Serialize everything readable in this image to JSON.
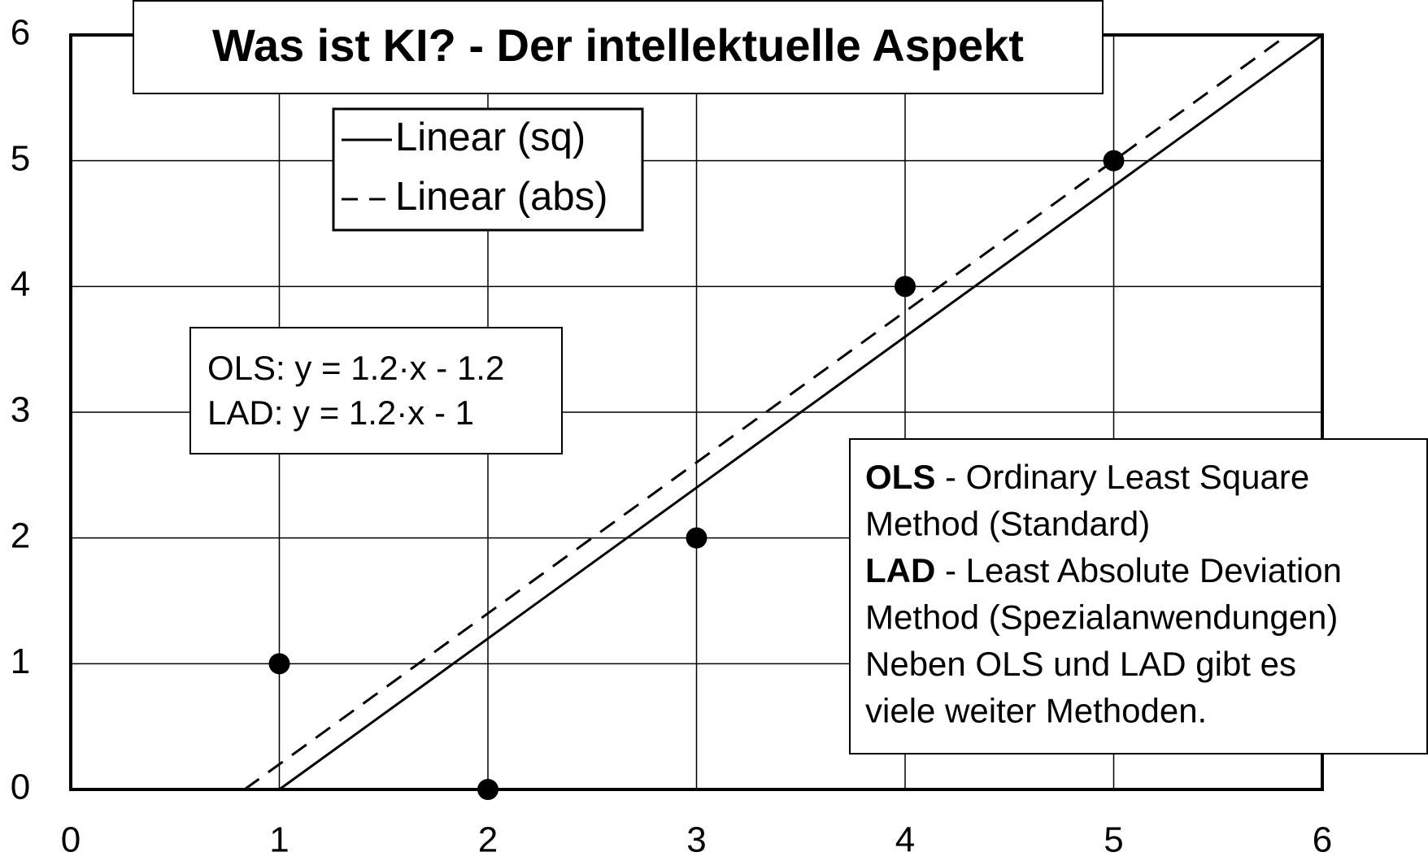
{
  "chart_data": {
    "type": "scatter",
    "title": "Was ist KI? - Der intellektuelle Aspekt",
    "xlim": [
      0,
      6
    ],
    "ylim": [
      0,
      6
    ],
    "xticks": [
      0,
      1,
      2,
      3,
      4,
      5,
      6
    ],
    "yticks": [
      0,
      1,
      2,
      3,
      4,
      5,
      6
    ],
    "grid": true,
    "points": {
      "color": "#000000",
      "x": [
        1,
        2,
        3,
        4,
        5
      ],
      "values": [
        1,
        0,
        2,
        4,
        5
      ]
    },
    "series": [
      {
        "name": "Linear (sq)",
        "color": "#000000",
        "dash": "solid",
        "x": [
          1,
          6
        ],
        "values": [
          0,
          6
        ]
      },
      {
        "name": "Linear (abs)",
        "color": "#000000",
        "dash": "dashed",
        "x": [
          0.833,
          5.833
        ],
        "values": [
          0,
          6
        ]
      }
    ],
    "equations": [
      "OLS: y = 1.2·x - 1.2",
      "LAD: y = 1.2·x - 1"
    ],
    "notes": [
      {
        "bold": "OLS",
        "text": " - Ordinary Least Square"
      },
      {
        "text": "Method (Standard)"
      },
      {
        "bold": "LAD",
        "text": " - Least Absolute Deviation"
      },
      {
        "text": "Method (Spezialanwendungen)"
      },
      {
        "text": "Neben OLS und LAD gibt es"
      },
      {
        "text": "viele weiter Methoden."
      }
    ]
  }
}
